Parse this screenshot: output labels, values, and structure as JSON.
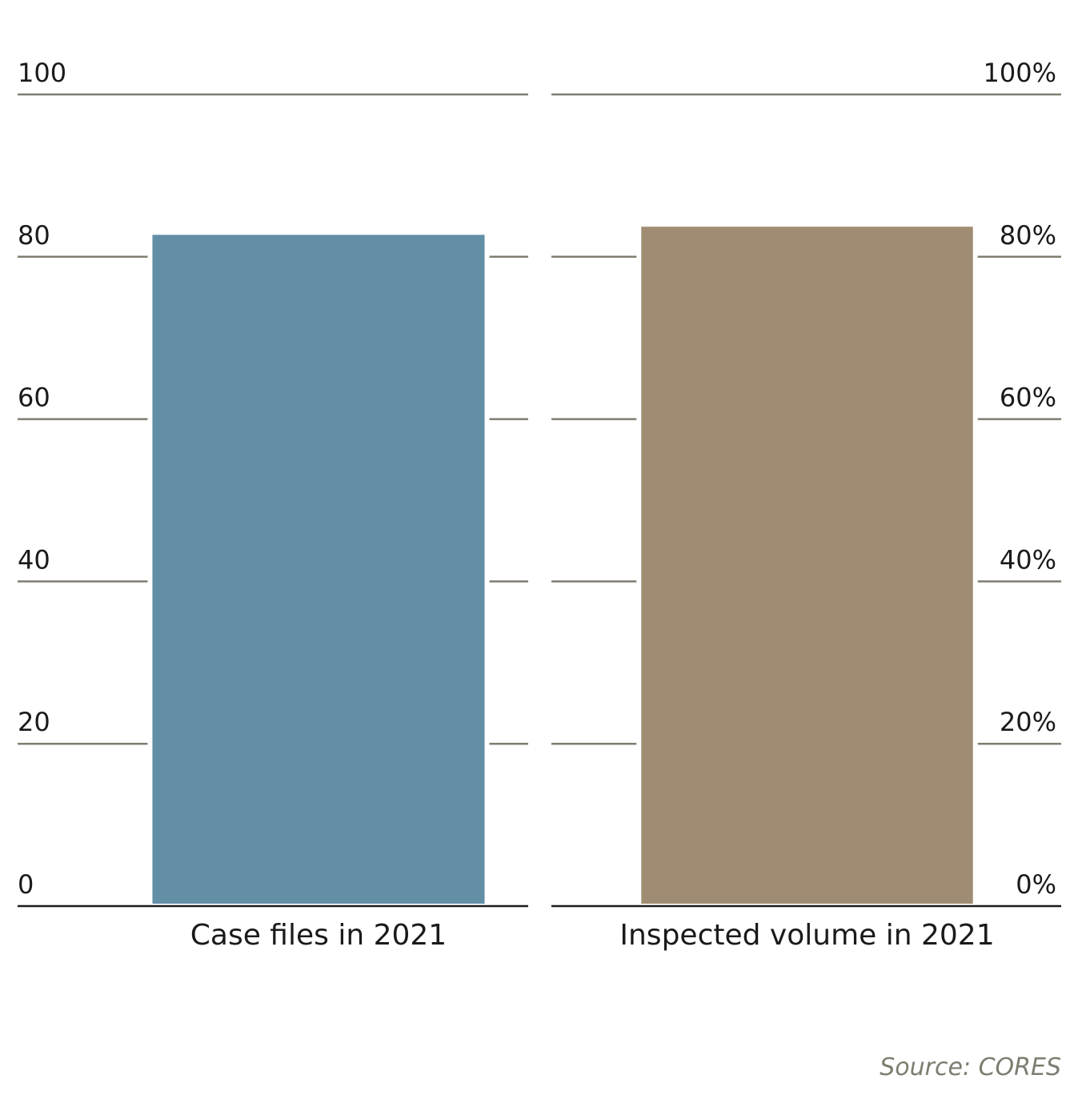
{
  "chart_data": [
    {
      "type": "bar",
      "categories": [
        "Case files in 2021"
      ],
      "values": [
        83
      ],
      "color": "#628fa6",
      "ylim": [
        0,
        100
      ],
      "yticks": [
        0,
        20,
        40,
        60,
        80,
        100
      ],
      "grid": true
    },
    {
      "type": "bar",
      "categories": [
        "Inspected volume in 2021"
      ],
      "values": [
        84
      ],
      "color": "#a08c72",
      "ylim": [
        0,
        100
      ],
      "yticks": [
        {
          "value": 0,
          "label": "0%"
        },
        {
          "value": 20,
          "label": "20%"
        },
        {
          "value": 40,
          "label": "40%"
        },
        {
          "value": 60,
          "label": "60%"
        },
        {
          "value": 80,
          "label": "80%"
        },
        {
          "value": 100,
          "label": "100%"
        }
      ],
      "grid": true
    }
  ],
  "source": "Source: CORES"
}
